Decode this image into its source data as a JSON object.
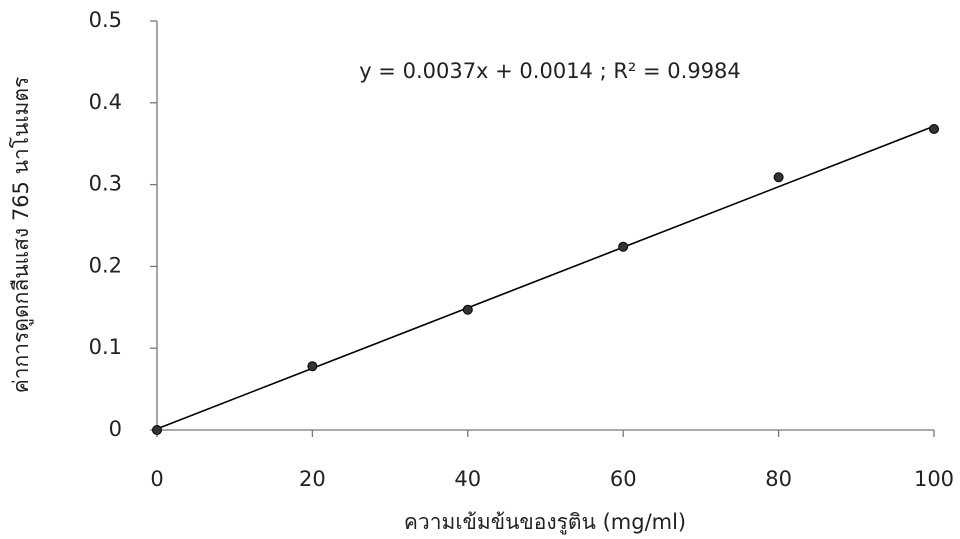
{
  "chart_data": {
    "type": "scatter",
    "x_label": "ความเข้มข้นของรูติน (mg/ml)",
    "y_label": "ค่าการดูดกลืนแสง 765 นาโนเมตร",
    "annotation": "y = 0.0037x + 0.0014 ; R² = 0.9984",
    "x": [
      0,
      20,
      40,
      60,
      80,
      100
    ],
    "values": [
      0,
      0.078,
      0.147,
      0.224,
      0.309,
      0.368
    ],
    "color": "#333333",
    "trendline": {
      "slope": 0.0037,
      "intercept": 0.0014,
      "color": "#000000"
    },
    "xlim": [
      0,
      100
    ],
    "xticks": [
      0,
      20,
      40,
      60,
      80,
      100
    ],
    "ylim": [
      0,
      0.5
    ],
    "yticks": [
      0,
      0.1,
      0.2,
      0.3,
      0.4,
      0.5
    ],
    "grid": false
  }
}
